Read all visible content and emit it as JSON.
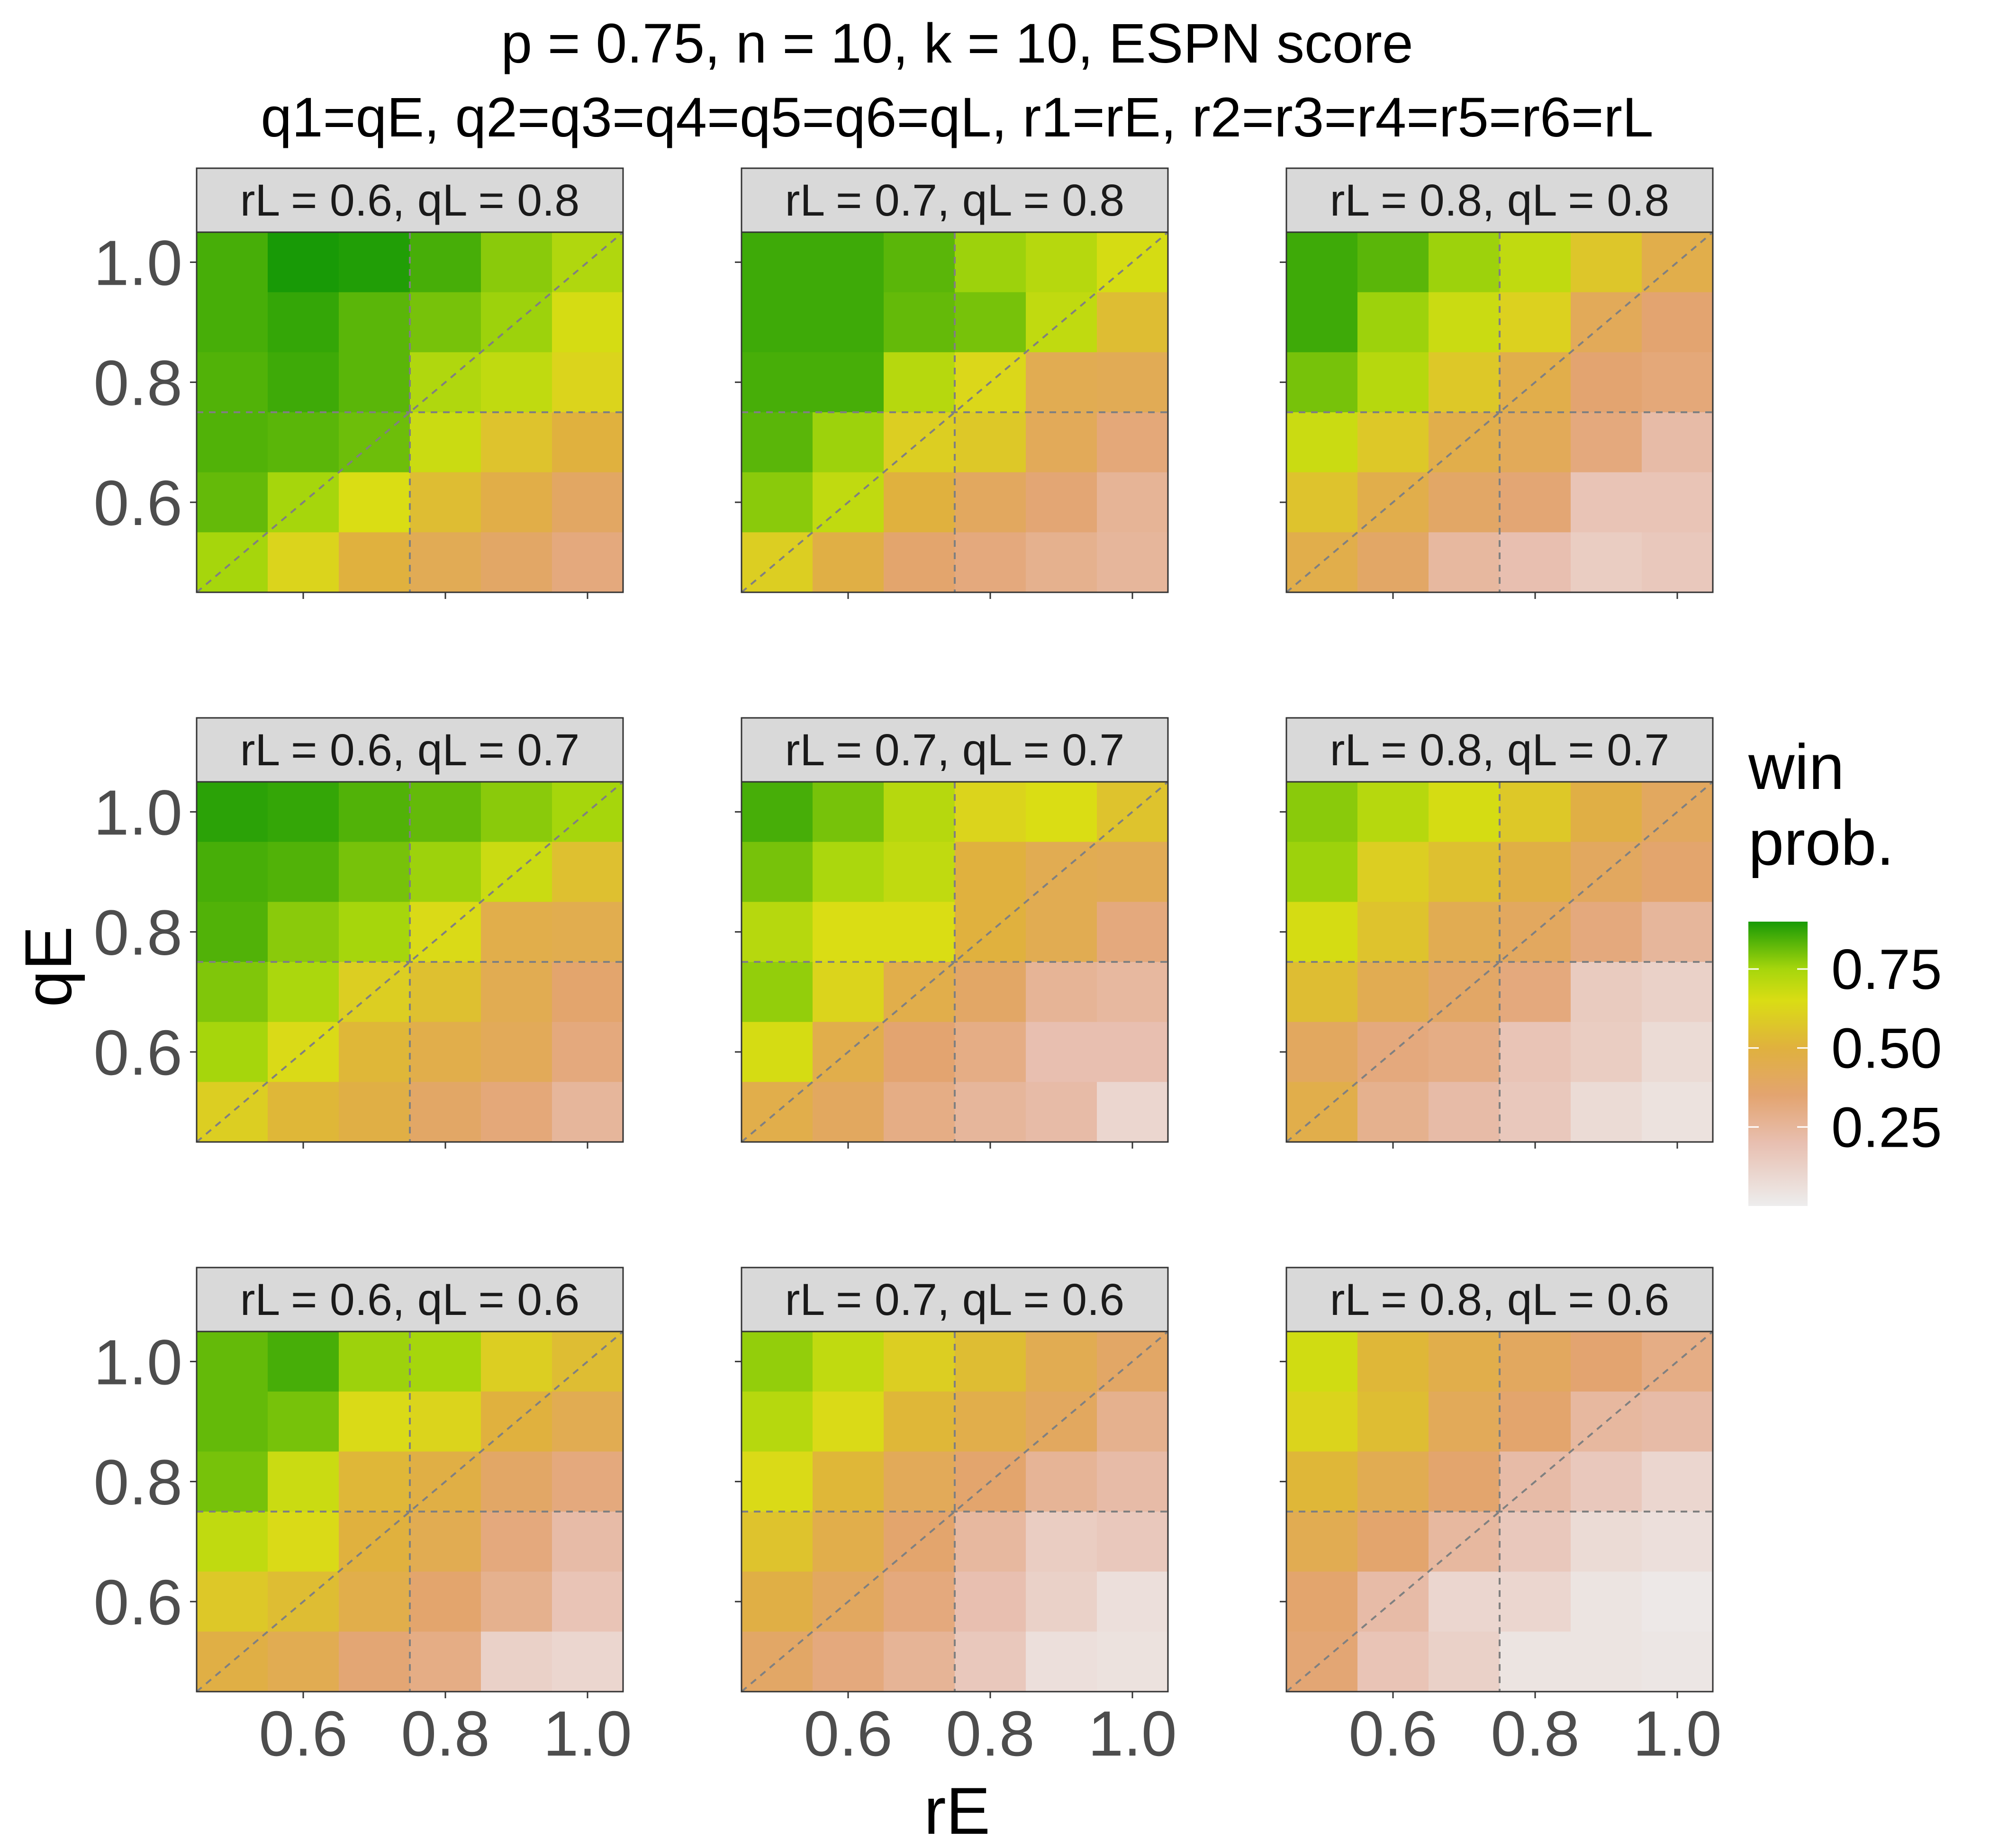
{
  "title": {
    "line1": "p = 0.75, n = 10, k = 10, ESPN score",
    "line2": "q1=qE,  q2=q3=q4=q5=q6=qL, r1=rE,  r2=r3=r4=r5=r6=rL"
  },
  "chart_data": {
    "type": "heatmap",
    "xlabel": "rE",
    "ylabel": "qE",
    "x": [
      0.5,
      0.6,
      0.7,
      0.8,
      0.9,
      1.0
    ],
    "y": [
      0.5,
      0.6,
      0.7,
      0.8,
      0.9,
      1.0
    ],
    "xlim": [
      0.45,
      1.05
    ],
    "ylim": [
      0.45,
      1.05
    ],
    "x_ticks": [
      "0.6",
      "0.8",
      "1.0"
    ],
    "y_ticks": [
      "0.6",
      "0.8",
      "1.0"
    ],
    "tick_values": [
      0.6,
      0.8,
      1.0
    ],
    "reference_lines": {
      "vline": 0.75,
      "hline": 0.75,
      "diagonal": "y = x"
    },
    "grid": true,
    "legend": {
      "title": "win\nprob.",
      "ticks": [
        "0.75",
        "0.50",
        "0.25"
      ],
      "tick_values": [
        0.75,
        0.5,
        0.25
      ],
      "range": [
        0.0,
        0.9
      ],
      "placement": "right",
      "color_stops": [
        {
          "value": 0.0,
          "color": "#ededed"
        },
        {
          "value": 0.2,
          "color": "#e8bfb0"
        },
        {
          "value": 0.35,
          "color": "#e3a470"
        },
        {
          "value": 0.5,
          "color": "#e0b13e"
        },
        {
          "value": 0.65,
          "color": "#dadd14"
        },
        {
          "value": 0.75,
          "color": "#a6d60c"
        },
        {
          "value": 0.9,
          "color": "#189a06"
        }
      ]
    },
    "panels": [
      {
        "strip": "rL = 0.6, qL = 0.8",
        "values": [
          [
            0.85,
            0.9,
            0.89,
            0.85,
            0.78,
            0.73
          ],
          [
            0.85,
            0.87,
            0.83,
            0.8,
            0.76,
            0.66
          ],
          [
            0.84,
            0.86,
            0.83,
            0.73,
            0.7,
            0.62
          ],
          [
            0.84,
            0.83,
            0.81,
            0.68,
            0.56,
            0.5
          ],
          [
            0.82,
            0.75,
            0.65,
            0.54,
            0.47,
            0.39
          ],
          [
            0.75,
            0.62,
            0.5,
            0.43,
            0.38,
            0.32
          ]
        ]
      },
      {
        "strip": "rL = 0.7, qL = 0.8",
        "values": [
          [
            0.86,
            0.86,
            0.83,
            0.76,
            0.72,
            0.66
          ],
          [
            0.86,
            0.86,
            0.82,
            0.8,
            0.7,
            0.54
          ],
          [
            0.85,
            0.85,
            0.72,
            0.63,
            0.44,
            0.43
          ],
          [
            0.83,
            0.76,
            0.6,
            0.58,
            0.42,
            0.33
          ],
          [
            0.78,
            0.7,
            0.5,
            0.4,
            0.34,
            0.26
          ],
          [
            0.6,
            0.48,
            0.36,
            0.32,
            0.28,
            0.25
          ]
        ]
      },
      {
        "strip": "rL = 0.8, qL = 0.8",
        "values": [
          [
            0.86,
            0.83,
            0.76,
            0.7,
            0.57,
            0.46
          ],
          [
            0.86,
            0.76,
            0.68,
            0.61,
            0.42,
            0.35
          ],
          [
            0.8,
            0.72,
            0.58,
            0.46,
            0.35,
            0.33
          ],
          [
            0.68,
            0.58,
            0.46,
            0.42,
            0.32,
            0.22
          ],
          [
            0.56,
            0.46,
            0.38,
            0.34,
            0.18,
            0.18
          ],
          [
            0.46,
            0.38,
            0.24,
            0.2,
            0.14,
            0.16
          ]
        ]
      },
      {
        "strip": "rL = 0.6, qL = 0.7",
        "values": [
          [
            0.88,
            0.87,
            0.84,
            0.82,
            0.78,
            0.75
          ],
          [
            0.85,
            0.84,
            0.8,
            0.76,
            0.68,
            0.55
          ],
          [
            0.84,
            0.78,
            0.75,
            0.64,
            0.46,
            0.45
          ],
          [
            0.79,
            0.74,
            0.6,
            0.55,
            0.44,
            0.36
          ],
          [
            0.75,
            0.64,
            0.52,
            0.46,
            0.42,
            0.32
          ],
          [
            0.6,
            0.52,
            0.48,
            0.38,
            0.33,
            0.25
          ]
        ]
      },
      {
        "strip": "rL = 0.7, qL = 0.7",
        "values": [
          [
            0.85,
            0.8,
            0.72,
            0.62,
            0.65,
            0.56
          ],
          [
            0.8,
            0.74,
            0.7,
            0.5,
            0.44,
            0.43
          ],
          [
            0.72,
            0.65,
            0.65,
            0.5,
            0.44,
            0.32
          ],
          [
            0.77,
            0.62,
            0.46,
            0.38,
            0.26,
            0.24
          ],
          [
            0.66,
            0.46,
            0.35,
            0.3,
            0.2,
            0.2
          ],
          [
            0.46,
            0.4,
            0.3,
            0.25,
            0.22,
            0.1
          ]
        ]
      },
      {
        "strip": "rL = 0.8, qL = 0.7",
        "values": [
          [
            0.78,
            0.72,
            0.66,
            0.58,
            0.48,
            0.4
          ],
          [
            0.76,
            0.6,
            0.55,
            0.48,
            0.4,
            0.36
          ],
          [
            0.66,
            0.56,
            0.44,
            0.4,
            0.32,
            0.25
          ],
          [
            0.54,
            0.44,
            0.38,
            0.32,
            0.15,
            0.12
          ],
          [
            0.4,
            0.32,
            0.3,
            0.18,
            0.14,
            0.08
          ],
          [
            0.46,
            0.28,
            0.22,
            0.16,
            0.08,
            0.05
          ]
        ]
      },
      {
        "strip": "rL = 0.6, qL = 0.6",
        "values": [
          [
            0.82,
            0.85,
            0.76,
            0.75,
            0.6,
            0.54
          ],
          [
            0.82,
            0.8,
            0.64,
            0.62,
            0.5,
            0.44
          ],
          [
            0.8,
            0.68,
            0.52,
            0.48,
            0.38,
            0.32
          ],
          [
            0.7,
            0.64,
            0.5,
            0.44,
            0.32,
            0.22
          ],
          [
            0.58,
            0.54,
            0.46,
            0.36,
            0.28,
            0.18
          ],
          [
            0.48,
            0.44,
            0.34,
            0.3,
            0.12,
            0.1
          ]
        ]
      },
      {
        "strip": "rL = 0.7, qL = 0.6",
        "values": [
          [
            0.77,
            0.7,
            0.6,
            0.54,
            0.44,
            0.38
          ],
          [
            0.72,
            0.64,
            0.52,
            0.46,
            0.4,
            0.28
          ],
          [
            0.64,
            0.52,
            0.42,
            0.36,
            0.26,
            0.22
          ],
          [
            0.56,
            0.46,
            0.36,
            0.24,
            0.14,
            0.16
          ],
          [
            0.48,
            0.4,
            0.32,
            0.2,
            0.12,
            0.06
          ],
          [
            0.38,
            0.32,
            0.26,
            0.16,
            0.06,
            0.05
          ]
        ]
      },
      {
        "strip": "rL = 0.8, qL = 0.6",
        "values": [
          [
            0.67,
            0.52,
            0.46,
            0.4,
            0.35,
            0.3
          ],
          [
            0.62,
            0.54,
            0.42,
            0.36,
            0.24,
            0.22
          ],
          [
            0.52,
            0.44,
            0.36,
            0.22,
            0.16,
            0.1
          ],
          [
            0.44,
            0.36,
            0.24,
            0.16,
            0.08,
            0.06
          ],
          [
            0.36,
            0.22,
            0.1,
            0.1,
            0.04,
            0.02
          ],
          [
            0.34,
            0.18,
            0.12,
            0.04,
            0.04,
            0.03
          ]
        ]
      }
    ]
  }
}
